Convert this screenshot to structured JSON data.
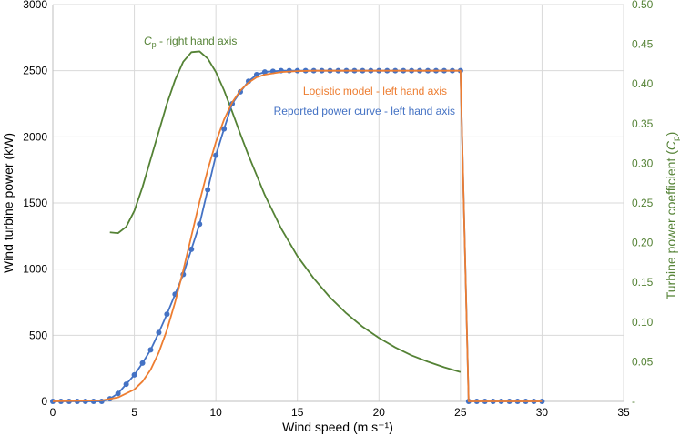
{
  "chart_data": {
    "type": "line",
    "xlabel": "Wind speed (m s⁻¹)",
    "ylabel": "Wind turbine power (kW)",
    "y2label_prefix": "Turbine power coefficient (",
    "y2label_sym": "C",
    "y2label_sub": "p",
    "y2label_suffix": ")",
    "xlim": [
      0,
      35
    ],
    "ylim": [
      0,
      3000
    ],
    "y2lim": [
      0,
      0.5
    ],
    "grid": true,
    "x_ticks": [
      "0",
      "5",
      "10",
      "15",
      "20",
      "25",
      "30",
      "35"
    ],
    "y_ticks": [
      "0",
      "500",
      "1000",
      "1500",
      "2000",
      "2500",
      "3000"
    ],
    "y2_ticks": [
      "-",
      "0.05",
      "0.10",
      "0.15",
      "0.20",
      "0.25",
      "0.30",
      "0.35",
      "0.40",
      "0.45",
      "0.50"
    ],
    "colors": {
      "reported": "#4472C4",
      "logistic": "#ED7D31",
      "cp": "#548235"
    },
    "annotations": {
      "cp_sym": "C",
      "cp_sub": "p",
      "cp_rest": " - right hand axis",
      "logistic": "Logistic model - left hand axis",
      "reported": "Reported power curve - left hand axis"
    },
    "series": [
      {
        "name": "Reported power curve",
        "axis": "left",
        "markers": true,
        "x": [
          0,
          0.5,
          1,
          1.5,
          2,
          2.5,
          3,
          3.5,
          4,
          4.5,
          5,
          5.5,
          6,
          6.5,
          7,
          7.5,
          8,
          8.5,
          9,
          9.5,
          10,
          10.5,
          11,
          11.5,
          12,
          12.5,
          13,
          13.5,
          14,
          14.5,
          15,
          15.5,
          16,
          16.5,
          17,
          17.5,
          18,
          18.5,
          19,
          19.5,
          20,
          20.5,
          21,
          21.5,
          22,
          22.5,
          23,
          23.5,
          24,
          24.5,
          25,
          25.5,
          26,
          26.5,
          27,
          27.5,
          28,
          28.5,
          29,
          29.5,
          30
        ],
        "values": [
          0,
          0,
          0,
          0,
          0,
          0,
          0,
          20,
          60,
          130,
          200,
          290,
          390,
          520,
          660,
          810,
          960,
          1150,
          1340,
          1600,
          1860,
          2060,
          2250,
          2340,
          2420,
          2470,
          2490,
          2495,
          2500,
          2500,
          2500,
          2500,
          2500,
          2500,
          2500,
          2500,
          2500,
          2500,
          2500,
          2500,
          2500,
          2500,
          2500,
          2500,
          2500,
          2500,
          2500,
          2500,
          2500,
          2500,
          2500,
          0,
          0,
          0,
          0,
          0,
          0,
          0,
          0,
          0,
          0
        ]
      },
      {
        "name": "Logistic model",
        "axis": "left",
        "markers": false,
        "x": [
          0,
          3,
          4,
          5,
          5.5,
          6,
          6.5,
          7,
          7.5,
          8,
          8.5,
          9,
          9.5,
          10,
          10.5,
          11,
          11.5,
          12,
          12.5,
          13,
          14,
          15,
          16,
          18,
          20,
          22,
          24,
          25,
          25.5,
          30
        ],
        "values": [
          0,
          8,
          30,
          90,
          150,
          240,
          370,
          540,
          750,
          990,
          1250,
          1510,
          1750,
          1960,
          2130,
          2260,
          2350,
          2410,
          2450,
          2470,
          2490,
          2497,
          2500,
          2500,
          2500,
          2500,
          2500,
          2500,
          0,
          0
        ]
      },
      {
        "name": "Cp",
        "axis": "right",
        "markers": false,
        "x": [
          3.5,
          4,
          4.5,
          5,
          5.5,
          6,
          6.5,
          7,
          7.5,
          8,
          8.5,
          9,
          9.5,
          10,
          10.5,
          11,
          11.5,
          12,
          13,
          14,
          15,
          16,
          17,
          18,
          19,
          20,
          21,
          22,
          23,
          24,
          25
        ],
        "values": [
          0.213,
          0.212,
          0.22,
          0.24,
          0.27,
          0.305,
          0.34,
          0.375,
          0.405,
          0.428,
          0.44,
          0.441,
          0.432,
          0.415,
          0.392,
          0.365,
          0.337,
          0.31,
          0.26,
          0.218,
          0.183,
          0.155,
          0.131,
          0.111,
          0.094,
          0.08,
          0.068,
          0.058,
          0.05,
          0.043,
          0.037
        ]
      }
    ]
  }
}
